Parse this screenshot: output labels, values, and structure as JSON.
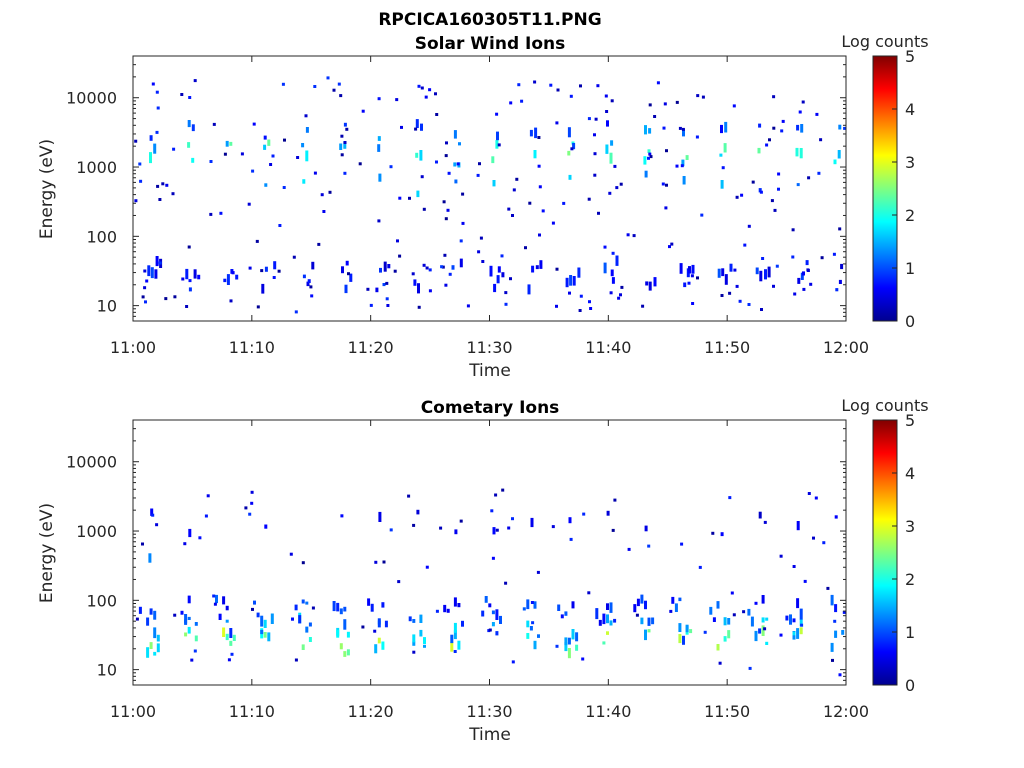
{
  "figure": {
    "filename": "RPCICA160305T11.PNG",
    "time_ticks": [
      "11:00",
      "11:10",
      "11:20",
      "11:30",
      "11:40",
      "11:50",
      "12:00"
    ],
    "energy_ticks": [
      "10",
      "100",
      "1000",
      "10000"
    ],
    "colorbar_ticks": [
      "0",
      "1",
      "2",
      "3",
      "4",
      "5"
    ],
    "colorbar_label": "Log counts",
    "colormap": [
      "#00008f",
      "#0000ff",
      "#0080ff",
      "#00ffff",
      "#80ff80",
      "#ffff00",
      "#ff8000",
      "#ff0000",
      "#800000"
    ]
  },
  "chart_data": [
    {
      "type": "heatmap",
      "title": "Solar Wind Ions",
      "xlabel": "Time",
      "ylabel": "Energy (eV)",
      "xlim": [
        "11:00",
        "12:00"
      ],
      "ylim": [
        6,
        40000
      ],
      "yscale": "log",
      "color_scale": "Log counts",
      "clim": [
        0,
        5
      ],
      "bands": [
        {
          "energy": 1600,
          "period_min": 3.2,
          "offset_min": 1.6,
          "width_min": 0.5,
          "intensity": 1.9,
          "step_min": 0.35
        },
        {
          "energy": 2900,
          "period_min": 3.2,
          "offset_min": 1.6,
          "width_min": 0.4,
          "intensity": 1.1,
          "step_min": 0.35
        },
        {
          "energy": 560,
          "period_min": 3.2,
          "offset_min": 1.6,
          "width_min": 0.3,
          "intensity": 1.4,
          "step_min": 0.35
        },
        {
          "energy": 25,
          "period_min": 3.2,
          "offset_min": 1.6,
          "width_min": 0.8,
          "intensity": 0.8,
          "step_min": 0.3
        },
        {
          "energy": 30,
          "period_min": 3.2,
          "offset_min": 2.2,
          "width_min": 0.6,
          "intensity": 0.6,
          "step_min": 0.3
        }
      ],
      "scatter_points": 260,
      "scatter_energy_range": [
        8,
        20000
      ]
    },
    {
      "type": "heatmap",
      "title": "Cometary Ions",
      "xlabel": "Time",
      "ylabel": "Energy (eV)",
      "xlim": [
        "11:00",
        "12:00"
      ],
      "ylim": [
        6,
        40000
      ],
      "yscale": "log",
      "color_scale": "Log counts",
      "clim": [
        0,
        5
      ],
      "bands": [
        {
          "energy": 25,
          "period_min": 3.2,
          "offset_min": 1.6,
          "width_min": 1.0,
          "intensity": 2.2,
          "step_min": 0.3
        },
        {
          "energy": 38,
          "period_min": 3.2,
          "offset_min": 1.6,
          "width_min": 1.0,
          "intensity": 1.4,
          "step_min": 0.3
        },
        {
          "energy": 70,
          "period_min": 3.2,
          "offset_min": 1.2,
          "width_min": 1.4,
          "intensity": 0.9,
          "step_min": 0.3
        },
        {
          "energy": 1300,
          "period_min": 3.2,
          "offset_min": 1.6,
          "width_min": 0.3,
          "intensity": 0.5,
          "step_min": 0.35
        },
        {
          "energy": 560,
          "period_min": 60,
          "offset_min": 1.6,
          "width_min": 0.6,
          "intensity": 1.9,
          "step_min": 0.35
        }
      ],
      "scatter_points": 90,
      "scatter_energy_range": [
        8,
        4000
      ]
    }
  ]
}
